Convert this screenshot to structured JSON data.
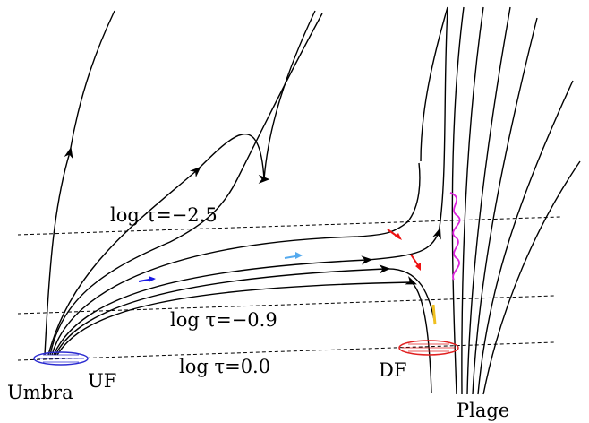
{
  "labels": {
    "tau_high": "log τ=−2.5",
    "tau_mid": "log τ=−0.9",
    "tau_low": "log τ=0.0",
    "umbra": "Umbra",
    "uf": "UF",
    "df": "DF",
    "plage": "Plage"
  },
  "colors": {
    "field_line": "#000000",
    "uf_footpoint": "#2a2ad0",
    "df_footpoint": "#e02020",
    "arrow_blue": "#1a1ae6",
    "arrow_lightblue": "#55aaee",
    "arrow_red": "#ee1111",
    "arrow_yellow": "#f0c020",
    "wave_magenta": "#dd22dd"
  }
}
